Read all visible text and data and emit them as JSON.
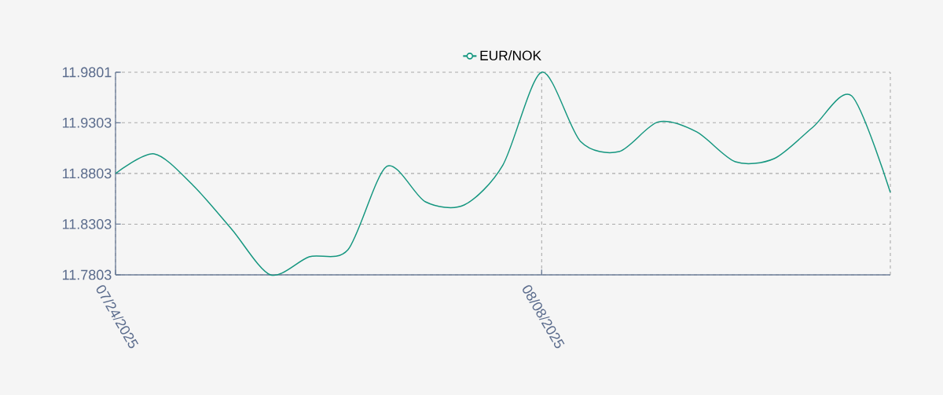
{
  "chart_data": {
    "type": "line",
    "categories": [
      "07/24/2025",
      null,
      null,
      null,
      null,
      null,
      null,
      null,
      null,
      null,
      null,
      "08/08/2025",
      null,
      null,
      null,
      null,
      null,
      null,
      null,
      null,
      null
    ],
    "series": [
      {
        "name": "EUR/NOK",
        "color": "#14967f",
        "values": [
          11.8802,
          11.8996,
          11.8686,
          11.8252,
          11.7803,
          11.7981,
          11.8051,
          11.8872,
          11.8523,
          11.8492,
          11.8887,
          11.9801,
          11.912,
          11.9019,
          11.931,
          11.9213,
          11.8918,
          11.8949,
          11.9259,
          11.9569,
          11.8616
        ]
      }
    ],
    "ylim": [
      11.7803,
      11.9801
    ],
    "yticks": [
      11.7803,
      11.8303,
      11.8803,
      11.9303,
      11.9801
    ],
    "grid": true,
    "legend": "top",
    "marker": "none",
    "line_style": "solid"
  }
}
